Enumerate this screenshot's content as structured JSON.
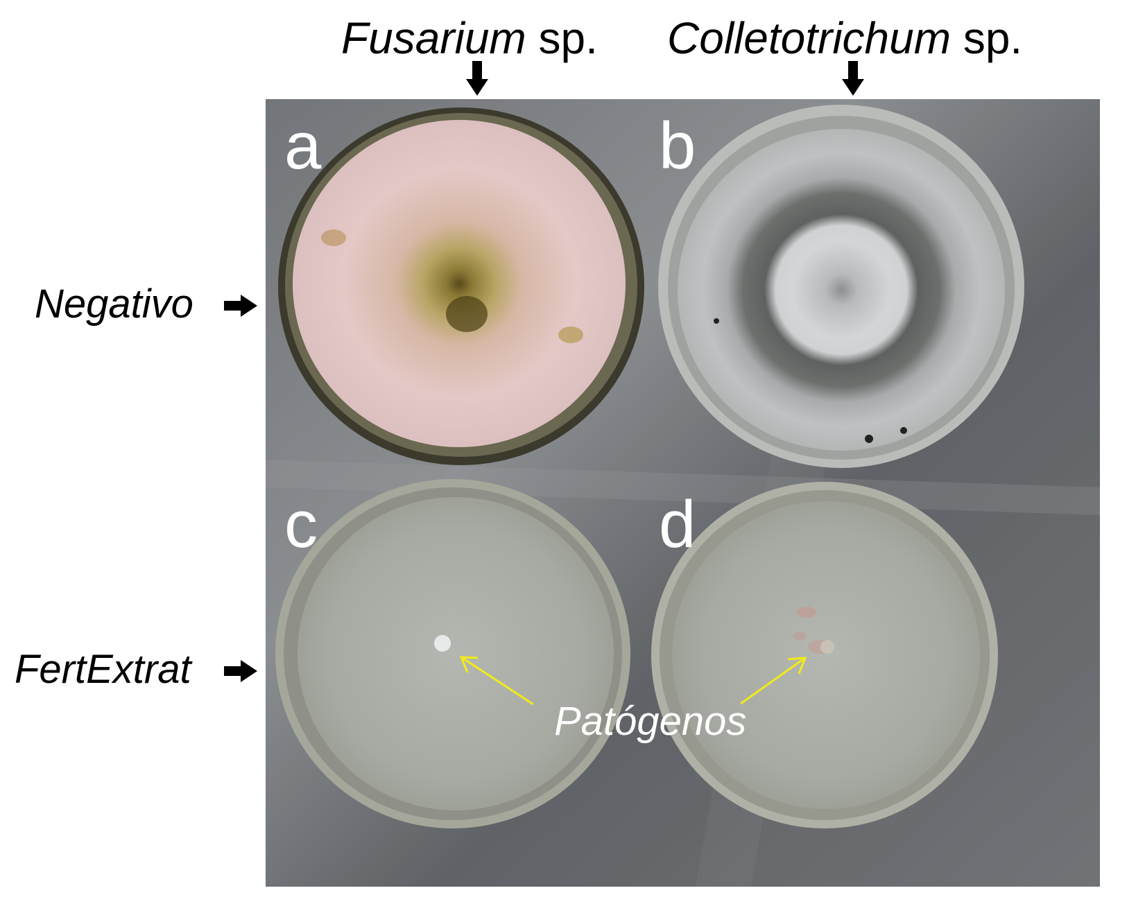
{
  "columns": {
    "fusarium": {
      "genus": "Fusarium",
      "suffix": " sp."
    },
    "colletotrichum": {
      "genus": "Colletotrichum",
      "suffix": " sp."
    }
  },
  "rows": {
    "negativo": "Negativo",
    "fertextrat": "FertExtrat"
  },
  "panels": [
    "a",
    "b",
    "c",
    "d"
  ],
  "annotation": "Patógenos",
  "colors": {
    "arrow_black": "#000000",
    "pointer_yellow": "#f2ea1a",
    "background_metal": "#5f6266",
    "agar_pink": "#e2c6c4",
    "colony_brown": "#8a7a3a",
    "colony_gray": "#7a7c7c",
    "clear_agar": "#a7aaa3"
  }
}
